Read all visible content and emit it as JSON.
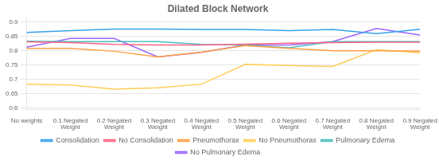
{
  "chart_data": {
    "type": "line",
    "title": "Dilated Block Network",
    "categories": [
      "No weights",
      "0.1 Negated\nWeight",
      "0.2 Negated\nWeight",
      "0.3 Negated\nWeight",
      "0.4 Negated\nWeight",
      "0.5 Negated\nWeight",
      "0.6 Negated\nWeight",
      "0.7 Negated\nWeight",
      "0.8 Negated\nWeight",
      "0.9 Negated\nWeight"
    ],
    "series": [
      {
        "name": "Consolidation",
        "values": [
          0.864,
          0.87,
          0.876,
          0.876,
          0.874,
          0.874,
          0.87,
          0.874,
          0.86,
          0.875
        ]
      },
      {
        "name": "No Consolidation",
        "values": [
          0.831,
          0.828,
          0.822,
          0.82,
          0.82,
          0.823,
          0.826,
          0.828,
          0.83,
          0.83
        ]
      },
      {
        "name": "Pneumothorax",
        "values": [
          0.808,
          0.808,
          0.798,
          0.778,
          0.795,
          0.818,
          0.808,
          0.8,
          0.8,
          0.798
        ]
      },
      {
        "name": "No Pneumothorax",
        "values": [
          0.683,
          0.68,
          0.665,
          0.67,
          0.683,
          0.752,
          0.748,
          0.745,
          0.803,
          0.793
        ]
      },
      {
        "name": "Pulmonary Edema",
        "values": [
          0.833,
          0.832,
          0.832,
          0.832,
          0.822,
          0.82,
          0.81,
          0.832,
          0.832,
          0.832
        ]
      },
      {
        "name": "No Pulmonary Edema",
        "values": [
          0.812,
          0.843,
          0.843,
          0.778,
          0.794,
          0.82,
          0.82,
          0.832,
          0.878,
          0.855
        ]
      }
    ],
    "ylim": [
      0.595,
      0.915
    ],
    "yticks": [
      0.6,
      0.65,
      0.7,
      0.75,
      0.8,
      0.85,
      0.9
    ],
    "grid": true,
    "legend": "bottom"
  }
}
